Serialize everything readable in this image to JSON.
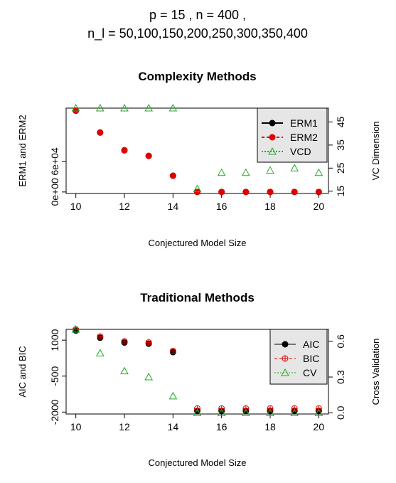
{
  "header": {
    "line1": "p =  15 ,  n =  400 ,",
    "line2": "n_l  =  50,100,150,200,250,300,350,400"
  },
  "chart_data": [
    {
      "type": "scatter",
      "title": "Complexity Methods",
      "xlabel": "Conjectured Model Size",
      "ylabel": "ERM1 and ERM2",
      "ylabel_right": "VC Dimension",
      "x": [
        10,
        11,
        12,
        13,
        14,
        15,
        16,
        17,
        18,
        19,
        20
      ],
      "xticks": [
        "10",
        "12",
        "14",
        "16",
        "18",
        "20"
      ],
      "yticks_left": [
        "0e+00",
        "6e+04"
      ],
      "yticks_right": [
        "15",
        "25",
        "35",
        "45"
      ],
      "legend_position": "top-right",
      "legend": [
        "ERM1",
        "ERM2",
        "VCD"
      ],
      "series": [
        {
          "name": "ERM1",
          "axis": "left",
          "color": "#000000",
          "marker": "circle",
          "values": [
            160000,
            117000,
            82000,
            71000,
            32000,
            0,
            0,
            0,
            0,
            0,
            0
          ]
        },
        {
          "name": "ERM2",
          "axis": "left",
          "color": "#e00000",
          "marker": "circle",
          "values": [
            160000,
            117000,
            82000,
            71000,
            32000,
            0,
            0,
            0,
            0,
            0,
            0
          ]
        },
        {
          "name": "VCD",
          "axis": "right",
          "color": "#22aa22",
          "marker": "triangle",
          "values": [
            51,
            51,
            51,
            51,
            51,
            16,
            23,
            23,
            24,
            25,
            23
          ]
        }
      ],
      "ylim_left": [
        -3000,
        165000
      ],
      "ylim_right": [
        14,
        51
      ]
    },
    {
      "type": "scatter",
      "title": "Traditional Methods",
      "xlabel": "Conjectured Model Size",
      "ylabel": "AIC and BIC",
      "ylabel_right": "Cross Validation",
      "x": [
        10,
        11,
        12,
        13,
        14,
        15,
        16,
        17,
        18,
        19,
        20
      ],
      "xticks": [
        "10",
        "12",
        "14",
        "16",
        "18",
        "20"
      ],
      "yticks_left": [
        "-2000",
        "-500",
        "1000"
      ],
      "yticks_right": [
        "0.0",
        "0.3",
        "0.6"
      ],
      "legend_position": "top-right",
      "legend": [
        "AIC",
        "BIC",
        "CV"
      ],
      "series": [
        {
          "name": "AIC",
          "axis": "left",
          "color": "#000000",
          "marker": "circle",
          "values": [
            1400,
            1100,
            900,
            850,
            500,
            -1950,
            -1950,
            -1950,
            -1950,
            -1950,
            -1950
          ]
        },
        {
          "name": "BIC",
          "axis": "left",
          "color": "#e00000",
          "marker": "circle-plus",
          "values": [
            1450,
            1150,
            950,
            900,
            550,
            -1850,
            -1850,
            -1850,
            -1850,
            -1850,
            -1850
          ]
        },
        {
          "name": "CV",
          "axis": "right",
          "color": "#22aa22",
          "marker": "triangle",
          "values": [
            0.7,
            0.5,
            0.35,
            0.3,
            0.14,
            0.0,
            0.0,
            0.0,
            0.0,
            0.0,
            0.0
          ]
        }
      ],
      "ylim_left": [
        -2080,
        1450
      ],
      "ylim_right": [
        -0.01,
        0.7
      ]
    }
  ]
}
